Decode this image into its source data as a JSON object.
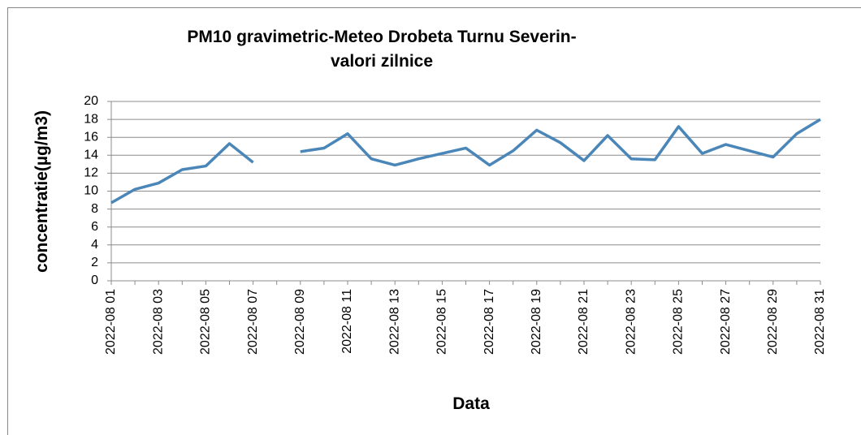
{
  "chart_data": {
    "type": "line",
    "title": [
      "PM10 gravimetric-Meteo Drobeta Turnu Severin-",
      "valori zilnice"
    ],
    "x_label": "Data",
    "y_label": "concentratie(µg/m3)",
    "categories": [
      "2022-08 01",
      null,
      "2022-08 03",
      null,
      "2022-08 05",
      null,
      "2022-08 07",
      null,
      "2022-08 09",
      null,
      "2022-08 11",
      null,
      "2022-08 13",
      null,
      "2022-08 15",
      null,
      "2022-08 17",
      null,
      "2022-08 19",
      null,
      "2022-08 21",
      null,
      "2022-08 23",
      null,
      "2022-08 25",
      null,
      "2022-08 27",
      null,
      "2022-08 29",
      null,
      "2022-08 31"
    ],
    "series": [
      {
        "color": "#4a86b8",
        "values": [
          8.7,
          10.2,
          10.9,
          12.4,
          12.8,
          15.3,
          13.2,
          null,
          14.4,
          14.8,
          16.4,
          13.6,
          12.9,
          13.6,
          14.2,
          14.8,
          12.9,
          14.5,
          16.8,
          15.4,
          13.4,
          16.2,
          13.6,
          13.5,
          17.2,
          14.2,
          15.2,
          14.5,
          13.8,
          16.4,
          18.0
        ]
      }
    ],
    "ylim": [
      0,
      20
    ],
    "yticks": [
      0,
      2,
      4,
      6,
      8,
      10,
      12,
      14,
      16,
      18,
      20
    ],
    "grid": true
  }
}
